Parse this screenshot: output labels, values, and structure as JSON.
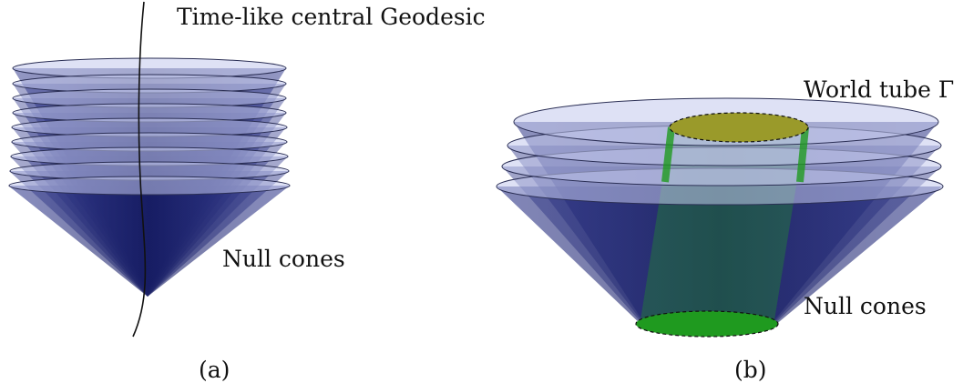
{
  "figure": {
    "panel_a": {
      "geodesic_label": "Time-like central Geodesic",
      "cones_label": "Null cones",
      "caption": "(a)"
    },
    "panel_b": {
      "world_tube_label": "World tube Γ",
      "cones_label": "Null cones",
      "caption": "(b)"
    }
  },
  "colors": {
    "cone_body": "#1c2370",
    "cone_rim": "#b7bde6",
    "tube_green": "#1f9a1f",
    "tube_top": "#9a9a2a",
    "line": "#111111"
  }
}
